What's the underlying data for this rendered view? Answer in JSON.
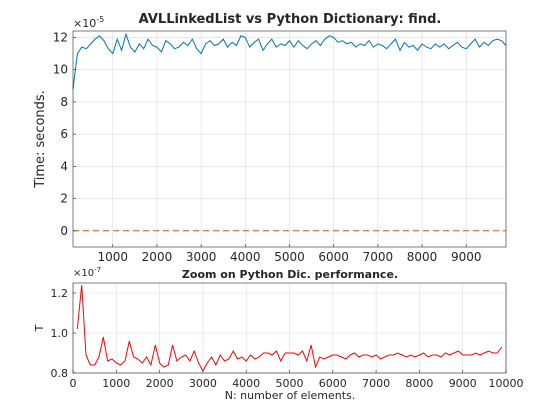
{
  "chart_data": [
    {
      "type": "line",
      "title": "AVLLinkedList vs Python Dictionary: find.",
      "xlabel": "",
      "ylabel": "Time: seconds.",
      "exponent_label": "×10",
      "exponent_power": "-5",
      "xlim": [
        100,
        9900
      ],
      "ylim": [
        -1,
        12.4
      ],
      "xticks": [
        1000,
        2000,
        3000,
        4000,
        5000,
        6000,
        7000,
        8000,
        9000
      ],
      "yticks": [
        0,
        2,
        4,
        6,
        8,
        10,
        12
      ],
      "grid": true,
      "series": [
        {
          "color": "#0072BD",
          "style": "solid",
          "x": [
            100,
            200,
            300,
            400,
            500,
            600,
            700,
            800,
            900,
            1000,
            1100,
            1200,
            1300,
            1400,
            1500,
            1600,
            1700,
            1800,
            1900,
            2000,
            2100,
            2200,
            2300,
            2400,
            2500,
            2600,
            2700,
            2800,
            2900,
            3000,
            3100,
            3200,
            3300,
            3400,
            3500,
            3600,
            3700,
            3800,
            3900,
            4000,
            4100,
            4200,
            4300,
            4400,
            4500,
            4600,
            4700,
            4800,
            4900,
            5000,
            5100,
            5200,
            5300,
            5400,
            5500,
            5600,
            5700,
            5800,
            5900,
            6000,
            6100,
            6200,
            6300,
            6400,
            6500,
            6600,
            6700,
            6800,
            6900,
            7000,
            7100,
            7200,
            7300,
            7400,
            7500,
            7600,
            7700,
            7800,
            7900,
            8000,
            8100,
            8200,
            8300,
            8400,
            8500,
            8600,
            8700,
            8800,
            8900,
            9000,
            9100,
            9200,
            9300,
            9400,
            9500,
            9600,
            9700,
            9800,
            9900
          ],
          "y": [
            8.8,
            11.0,
            11.4,
            11.3,
            11.6,
            11.9,
            12.1,
            11.8,
            11.3,
            11.0,
            11.9,
            11.2,
            12.2,
            11.4,
            11.1,
            11.6,
            11.3,
            11.9,
            11.5,
            11.4,
            11.1,
            11.8,
            11.6,
            11.3,
            11.4,
            11.7,
            11.5,
            11.9,
            11.3,
            11.0,
            11.6,
            11.8,
            11.5,
            11.6,
            11.9,
            11.4,
            11.7,
            11.5,
            12.1,
            12.0,
            11.4,
            11.7,
            11.9,
            11.2,
            11.6,
            11.9,
            11.4,
            11.6,
            11.5,
            11.8,
            11.4,
            11.8,
            11.5,
            11.3,
            11.6,
            11.8,
            11.5,
            11.9,
            12.1,
            12.0,
            11.7,
            11.8,
            11.6,
            11.7,
            11.4,
            11.6,
            11.5,
            11.8,
            11.4,
            11.6,
            11.5,
            11.3,
            11.6,
            11.9,
            11.2,
            11.7,
            11.4,
            11.5,
            11.2,
            11.6,
            11.4,
            11.3,
            11.6,
            11.4,
            11.6,
            11.3,
            11.5,
            11.7,
            11.4,
            11.3,
            11.6,
            11.9,
            11.4,
            11.7,
            11.5,
            11.8,
            11.9,
            11.8,
            11.5
          ]
        },
        {
          "color": "#D95319",
          "style": "dashed",
          "x": [
            100,
            9900
          ],
          "y": [
            0.009,
            0.009
          ]
        }
      ]
    },
    {
      "type": "line",
      "title": "Zoom on Python Dic. performance.",
      "xlabel": "N: number of elements.",
      "ylabel": "T",
      "exponent_label": "×10",
      "exponent_power": "-7",
      "xlim": [
        0,
        10000
      ],
      "ylim": [
        0.8,
        1.25
      ],
      "xticks": [
        0,
        1000,
        2000,
        3000,
        4000,
        5000,
        6000,
        7000,
        8000,
        9000,
        10000
      ],
      "yticks": [
        0.8,
        1.0,
        1.2
      ],
      "grid": true,
      "series": [
        {
          "color": "#FF0000",
          "style": "solid",
          "x": [
            100,
            200,
            300,
            400,
            500,
            600,
            700,
            800,
            900,
            1000,
            1100,
            1200,
            1300,
            1400,
            1500,
            1600,
            1700,
            1800,
            1900,
            2000,
            2100,
            2200,
            2300,
            2400,
            2500,
            2600,
            2700,
            2800,
            2900,
            3000,
            3100,
            3200,
            3300,
            3400,
            3500,
            3600,
            3700,
            3800,
            3900,
            4000,
            4100,
            4200,
            4300,
            4400,
            4500,
            4600,
            4700,
            4800,
            4900,
            5000,
            5100,
            5200,
            5300,
            5400,
            5500,
            5600,
            5700,
            5800,
            5900,
            6000,
            6100,
            6200,
            6300,
            6400,
            6500,
            6600,
            6700,
            6800,
            6900,
            7000,
            7100,
            7200,
            7300,
            7400,
            7500,
            7600,
            7700,
            7800,
            7900,
            8000,
            8100,
            8200,
            8300,
            8400,
            8500,
            8600,
            8700,
            8800,
            8900,
            9000,
            9100,
            9200,
            9300,
            9400,
            9500,
            9600,
            9700,
            9800,
            9900
          ],
          "y": [
            1.02,
            1.24,
            0.89,
            0.84,
            0.84,
            0.88,
            0.98,
            0.86,
            0.87,
            0.85,
            0.84,
            0.86,
            0.96,
            0.88,
            0.87,
            0.85,
            0.88,
            0.84,
            0.94,
            0.85,
            0.83,
            0.84,
            0.94,
            0.86,
            0.88,
            0.89,
            0.86,
            0.91,
            0.85,
            0.81,
            0.85,
            0.88,
            0.84,
            0.89,
            0.86,
            0.87,
            0.91,
            0.87,
            0.88,
            0.86,
            0.89,
            0.87,
            0.88,
            0.9,
            0.9,
            0.89,
            0.91,
            0.86,
            0.9,
            0.9,
            0.9,
            0.89,
            0.91,
            0.86,
            0.94,
            0.83,
            0.88,
            0.87,
            0.88,
            0.89,
            0.89,
            0.88,
            0.87,
            0.89,
            0.9,
            0.88,
            0.89,
            0.89,
            0.88,
            0.89,
            0.87,
            0.88,
            0.89,
            0.89,
            0.9,
            0.89,
            0.88,
            0.89,
            0.88,
            0.89,
            0.9,
            0.88,
            0.89,
            0.89,
            0.88,
            0.9,
            0.89,
            0.9,
            0.91,
            0.89,
            0.89,
            0.89,
            0.9,
            0.89,
            0.9,
            0.91,
            0.9,
            0.9,
            0.93
          ]
        }
      ]
    }
  ]
}
